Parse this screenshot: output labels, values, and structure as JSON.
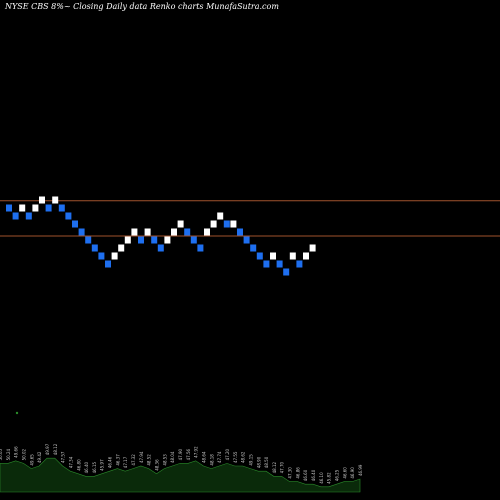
{
  "title": "NYSE CBS 8%~   Closing Daily data  Renko  charts MunafaSutra.com",
  "colors": {
    "background": "#000000",
    "brick_up": "#ffffff",
    "brick_down": "#1e6ff0",
    "reference_line": "#a0522d",
    "volume_fill": "#0a2a0a",
    "volume_line": "#2a8a2a",
    "volume_label": "#cccccc"
  },
  "chart_data": [
    {
      "type": "renko",
      "title": "NYSE CBS 8%~   Closing Daily data  Renko  charts MunafaSutra.com",
      "y_reference_levels": [
        50.2,
        48.0
      ],
      "bricks": [
        {
          "dir": "down",
          "level": 49.75
        },
        {
          "dir": "down",
          "level": 49.25
        },
        {
          "dir": "up",
          "level": 49.75
        },
        {
          "dir": "down",
          "level": 49.25
        },
        {
          "dir": "up",
          "level": 49.75
        },
        {
          "dir": "up",
          "level": 50.25
        },
        {
          "dir": "down",
          "level": 49.75
        },
        {
          "dir": "up",
          "level": 50.25
        },
        {
          "dir": "down",
          "level": 49.75
        },
        {
          "dir": "down",
          "level": 49.25
        },
        {
          "dir": "down",
          "level": 48.75
        },
        {
          "dir": "down",
          "level": 48.25
        },
        {
          "dir": "down",
          "level": 47.75
        },
        {
          "dir": "down",
          "level": 47.25
        },
        {
          "dir": "down",
          "level": 46.75
        },
        {
          "dir": "down",
          "level": 46.25
        },
        {
          "dir": "up",
          "level": 46.75
        },
        {
          "dir": "up",
          "level": 47.25
        },
        {
          "dir": "up",
          "level": 47.75
        },
        {
          "dir": "up",
          "level": 48.25
        },
        {
          "dir": "down",
          "level": 47.75
        },
        {
          "dir": "up",
          "level": 48.25
        },
        {
          "dir": "down",
          "level": 47.75
        },
        {
          "dir": "down",
          "level": 47.25
        },
        {
          "dir": "up",
          "level": 47.75
        },
        {
          "dir": "up",
          "level": 48.25
        },
        {
          "dir": "up",
          "level": 48.75
        },
        {
          "dir": "down",
          "level": 48.25
        },
        {
          "dir": "down",
          "level": 47.75
        },
        {
          "dir": "down",
          "level": 47.25
        },
        {
          "dir": "up",
          "level": 48.25
        },
        {
          "dir": "up",
          "level": 48.75
        },
        {
          "dir": "up",
          "level": 49.25
        },
        {
          "dir": "down",
          "level": 48.75
        },
        {
          "dir": "up",
          "level": 48.75
        },
        {
          "dir": "down",
          "level": 48.25
        },
        {
          "dir": "down",
          "level": 47.75
        },
        {
          "dir": "down",
          "level": 47.25
        },
        {
          "dir": "down",
          "level": 46.75
        },
        {
          "dir": "down",
          "level": 46.25
        },
        {
          "dir": "up",
          "level": 46.75
        },
        {
          "dir": "down",
          "level": 46.25
        },
        {
          "dir": "down",
          "level": 45.75
        },
        {
          "dir": "up",
          "level": 46.75
        },
        {
          "dir": "down",
          "level": 46.25
        },
        {
          "dir": "up",
          "level": 46.75
        },
        {
          "dir": "up",
          "level": 47.25
        }
      ]
    },
    {
      "type": "area",
      "title": "",
      "values": [
        0.55,
        0.55,
        0.6,
        0.55,
        0.45,
        0.5,
        0.65,
        0.65,
        0.5,
        0.4,
        0.35,
        0.3,
        0.3,
        0.35,
        0.4,
        0.45,
        0.4,
        0.45,
        0.5,
        0.45,
        0.35,
        0.45,
        0.5,
        0.55,
        0.55,
        0.6,
        0.5,
        0.45,
        0.5,
        0.55,
        0.5,
        0.5,
        0.45,
        0.4,
        0.4,
        0.3,
        0.3,
        0.2,
        0.2,
        0.15,
        0.15,
        0.1,
        0.1,
        0.15,
        0.2,
        0.2,
        0.25
      ],
      "labels": [
        "50.05",
        "50.24",
        "49.66",
        "50.02",
        "49.65",
        "49.42",
        "49.97",
        "48.12",
        "47.57",
        "47.34",
        "46.80",
        "46.40",
        "46.15",
        "45.97",
        "46.46",
        "46.37",
        "47.17",
        "47.32",
        "47.94",
        "48.52",
        "48.36",
        "48.53",
        "48.04",
        "47.90",
        "47.56",
        "47.92",
        "48.64",
        "48.18",
        "47.74",
        "47.20",
        "47.55",
        "48.62",
        "49.15",
        "48.90",
        "48.50",
        "48.12",
        "47.70",
        "47.30",
        "46.86",
        "46.60",
        "46.40",
        "46.10",
        "45.82",
        "46.25",
        "46.60",
        "46.90",
        "46.99"
      ]
    }
  ]
}
